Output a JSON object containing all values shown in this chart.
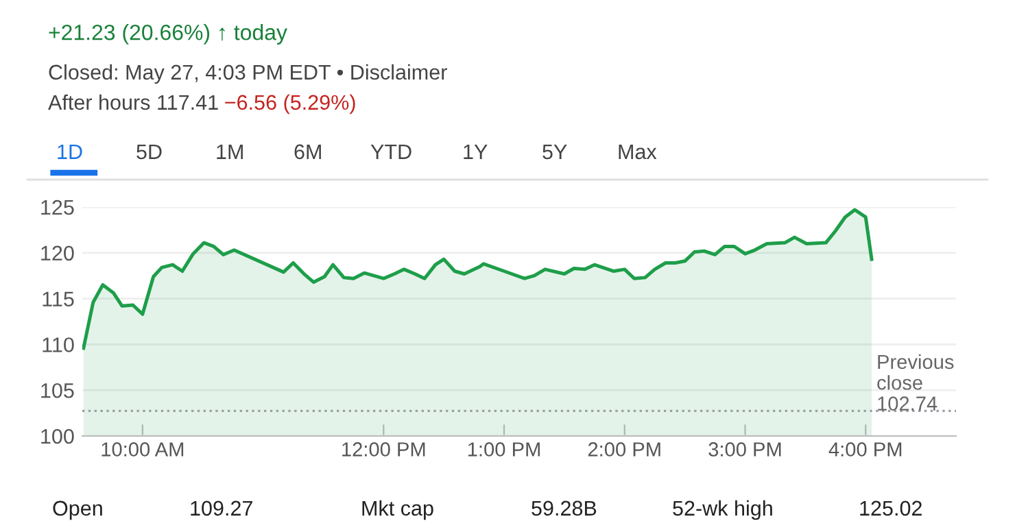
{
  "chart_data": {
    "type": "area",
    "x": [
      9.51,
      9.59,
      9.67,
      9.76,
      9.83,
      9.92,
      10.0,
      10.09,
      10.16,
      10.25,
      10.33,
      10.42,
      10.51,
      10.59,
      10.67,
      10.76,
      11.17,
      11.25,
      11.34,
      11.42,
      11.51,
      11.58,
      11.67,
      11.75,
      11.84,
      11.92,
      12.0,
      12.09,
      12.17,
      12.26,
      12.34,
      12.43,
      12.5,
      12.59,
      12.67,
      12.8,
      12.83,
      13.0,
      13.17,
      13.25,
      13.34,
      13.5,
      13.58,
      13.67,
      13.75,
      13.91,
      14.0,
      14.08,
      14.17,
      14.25,
      14.34,
      14.42,
      14.5,
      14.58,
      14.66,
      14.75,
      14.83,
      14.91,
      15.0,
      15.08,
      15.18,
      15.33,
      15.41,
      15.51,
      15.67,
      15.75,
      15.83,
      15.91,
      16.0,
      16.05
    ],
    "series": [
      {
        "color": "#1e9e4a",
        "values": [
          109.6,
          114.6,
          116.5,
          115.6,
          114.2,
          114.3,
          113.3,
          117.4,
          118.4,
          118.7,
          118.0,
          119.9,
          121.1,
          120.7,
          119.8,
          120.3,
          117.9,
          118.9,
          117.7,
          116.8,
          117.4,
          118.7,
          117.3,
          117.2,
          117.8,
          117.5,
          117.2,
          117.7,
          118.2,
          117.7,
          117.2,
          118.7,
          119.3,
          118.0,
          117.7,
          118.5,
          118.8,
          118.0,
          117.2,
          117.5,
          118.2,
          117.7,
          118.3,
          118.2,
          118.7,
          118.0,
          118.2,
          117.2,
          117.3,
          118.2,
          118.9,
          118.9,
          119.1,
          120.1,
          120.2,
          119.8,
          120.7,
          120.7,
          119.9,
          120.3,
          121.0,
          121.1,
          121.7,
          121.0,
          121.1,
          122.4,
          123.9,
          124.7,
          123.9,
          119.3
        ]
      }
    ],
    "xlim": [
      9.5,
      16.75
    ],
    "xticks": [
      {
        "value": 10,
        "label": "10:00 AM"
      },
      {
        "value": 12,
        "label": "12:00 PM"
      },
      {
        "value": 13,
        "label": "1:00 PM"
      },
      {
        "value": 14,
        "label": "2:00 PM"
      },
      {
        "value": 15,
        "label": "3:00 PM"
      },
      {
        "value": 16,
        "label": "4:00 PM"
      }
    ],
    "ylim": [
      100,
      125
    ],
    "yticks": [
      100,
      105,
      110,
      115,
      120,
      125
    ],
    "grid": "y",
    "legend": false,
    "line_style": "solid",
    "ref_lines": [
      {
        "axis": "y",
        "value": 102.74,
        "label": "Previous\nclose\n102.74",
        "color": "#9aa0a6",
        "line_style": "dotted"
      }
    ],
    "annotations": [
      "+21.23 (20.66%) ↑ today",
      "Closed: May 27, 4:03 PM EDT • Disclaimer",
      "After hours 117.41",
      "−6.56 (5.29%)",
      "1D",
      "5D",
      "1M",
      "6M",
      "YTD",
      "1Y",
      "5Y",
      "Max",
      "Open",
      "109.27",
      "Mkt cap",
      "59.28B",
      "52-wk high",
      "125.02"
    ]
  }
}
